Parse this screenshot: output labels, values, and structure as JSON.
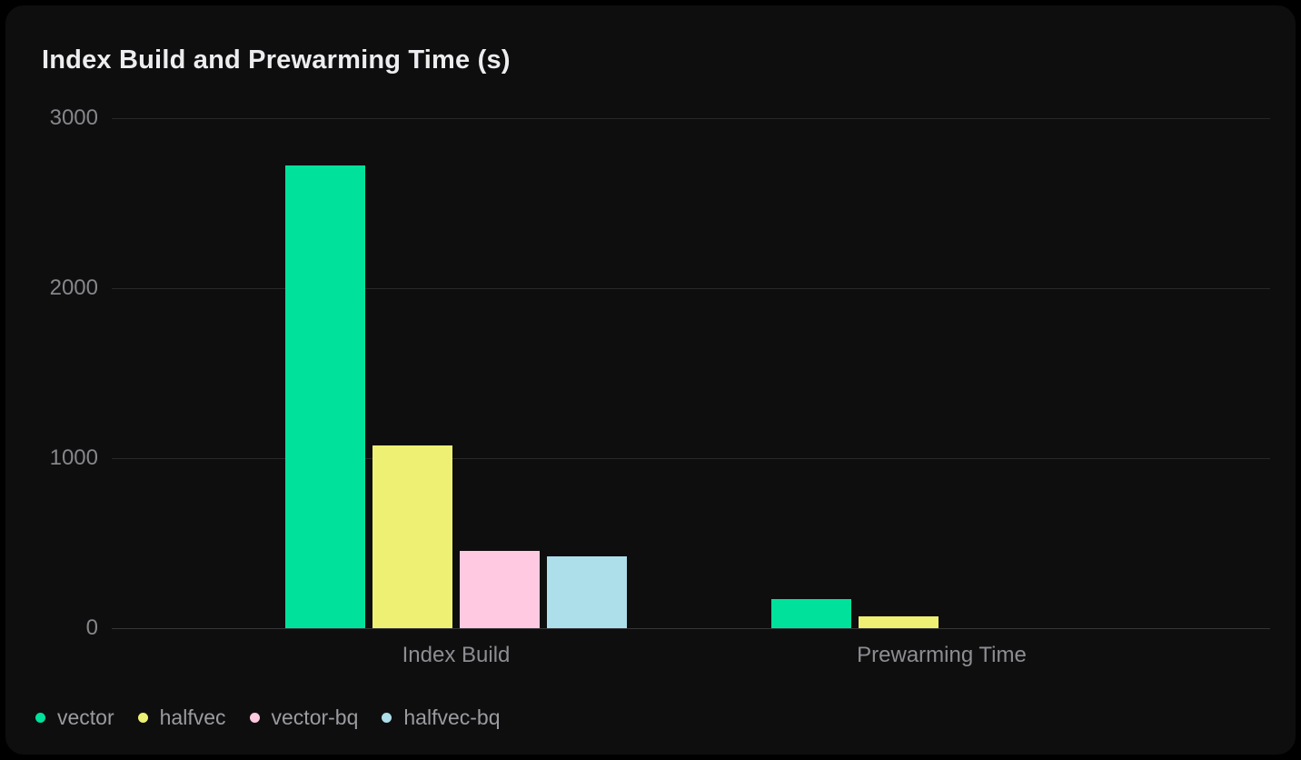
{
  "card": {
    "title": "Index Build and Prewarming Time (s)"
  },
  "chart_data": {
    "type": "bar",
    "title": "Index Build and Prewarming Time (s)",
    "categories": [
      "Index Build",
      "Prewarming Time"
    ],
    "series": [
      {
        "name": "vector",
        "color": "#00E29B",
        "values": [
          2722,
          170
        ]
      },
      {
        "name": "halfvec",
        "color": "#EDF073",
        "values": [
          1075,
          71
        ]
      },
      {
        "name": "vector-bq",
        "color": "#FFC9E1",
        "values": [
          455,
          0
        ]
      },
      {
        "name": "halfvec-bq",
        "color": "#ACDFEA",
        "values": [
          423,
          0
        ]
      }
    ],
    "xlabel": "",
    "ylabel": "",
    "unit": "s",
    "ylim": [
      0,
      3000
    ],
    "yticks": [
      0,
      1000,
      2000,
      3000
    ],
    "grid": true,
    "legend_position": "bottom-left"
  }
}
